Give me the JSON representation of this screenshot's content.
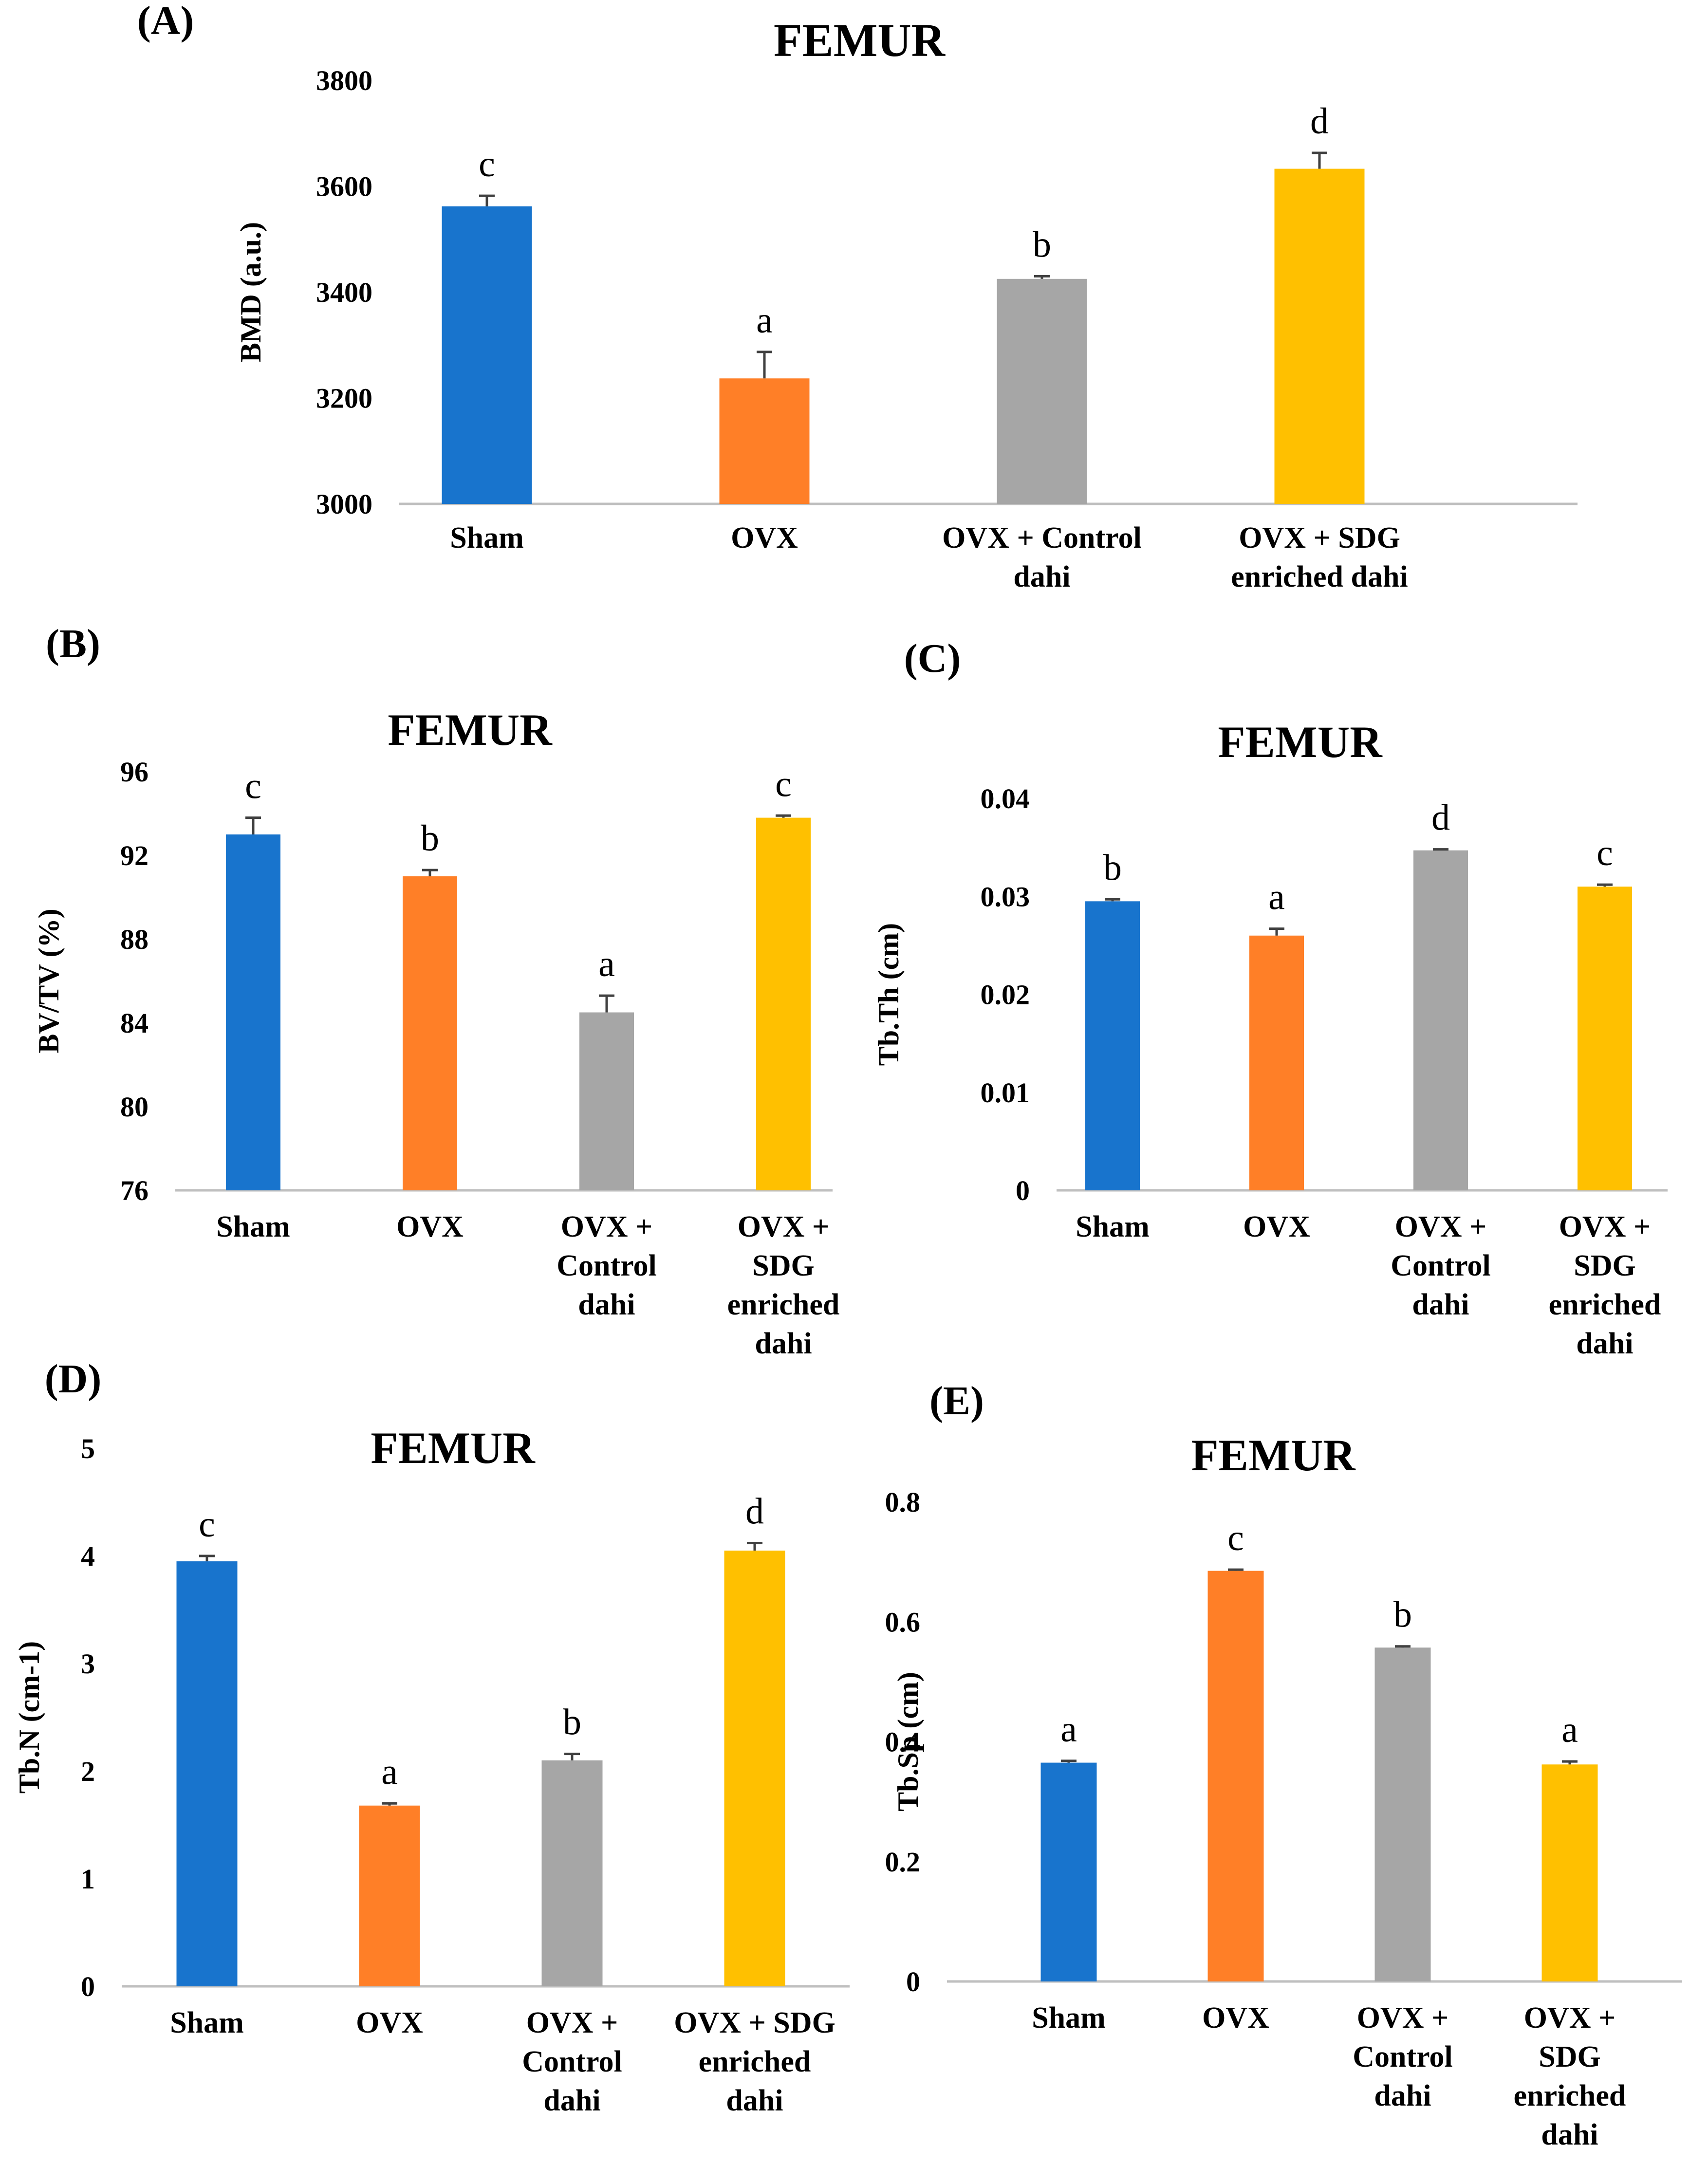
{
  "colors": {
    "sham": "#1874CD",
    "ovx": "#FF7F27",
    "ovx_control": "#A6A6A6",
    "ovx_sdg": "#FFC000",
    "axis": "#BFBFBF",
    "error_bar": "#404040",
    "text": "#000000"
  },
  "chart_data": [
    {
      "panel": "(A)",
      "type": "bar",
      "title": "FEMUR",
      "ylabel": "BMD (a.u.)",
      "xlabel": "",
      "ylim": [
        3000,
        3800
      ],
      "yticks": [
        "3000",
        "3200",
        "3400",
        "3600",
        "3800"
      ],
      "grid": false,
      "categories": [
        [
          "Sham"
        ],
        [
          "OVX"
        ],
        [
          "OVX + Control",
          "dahi"
        ],
        [
          "OVX + SDG",
          "enriched dahi"
        ]
      ],
      "values": [
        3562,
        3237,
        3425,
        3633
      ],
      "errors": [
        20,
        50,
        5,
        30
      ],
      "letters": [
        "c",
        "a",
        "b",
        "d"
      ]
    },
    {
      "panel": "(B)",
      "type": "bar",
      "title": "FEMUR",
      "ylabel": "BV/TV (%)",
      "xlabel": "",
      "ylim": [
        76,
        96
      ],
      "yticks": [
        "76",
        "80",
        "84",
        "88",
        "92",
        "96"
      ],
      "grid": false,
      "categories": [
        [
          "Sham"
        ],
        [
          "OVX"
        ],
        [
          "OVX +",
          "Control",
          "dahi"
        ],
        [
          "OVX +",
          "SDG",
          "enriched",
          "dahi"
        ]
      ],
      "values": [
        93.0,
        91.0,
        84.5,
        93.8
      ],
      "errors": [
        0.8,
        0.3,
        0.8,
        0.1
      ],
      "letters": [
        "c",
        "b",
        "a",
        "c"
      ]
    },
    {
      "panel": "(C)",
      "type": "bar",
      "title": "FEMUR",
      "ylabel": "Tb.Th (cm)",
      "xlabel": "",
      "ylim": [
        0,
        0.04
      ],
      "yticks": [
        "0",
        "0.01",
        "0.02",
        "0.03",
        "0.04"
      ],
      "grid": false,
      "categories": [
        [
          "Sham"
        ],
        [
          "OVX"
        ],
        [
          "OVX +",
          "Control",
          "dahi"
        ],
        [
          "OVX +",
          "SDG",
          "enriched",
          "dahi"
        ]
      ],
      "values": [
        0.0295,
        0.026,
        0.0347,
        0.031
      ],
      "errors": [
        0.0002,
        0.0007,
        0.0001,
        0.0002
      ],
      "letters": [
        "b",
        "a",
        "d",
        "c"
      ]
    },
    {
      "panel": "(D)",
      "type": "bar",
      "title": "FEMUR",
      "ylabel": "Tb.N (cm-1)",
      "xlabel": "",
      "ylim": [
        0,
        5
      ],
      "yticks": [
        "0",
        "1",
        "2",
        "3",
        "4",
        "5"
      ],
      "grid": false,
      "categories": [
        [
          "Sham"
        ],
        [
          "OVX"
        ],
        [
          "OVX +",
          "Control",
          "dahi"
        ],
        [
          "OVX + SDG",
          "enriched",
          "dahi"
        ]
      ],
      "values": [
        3.95,
        1.68,
        2.1,
        4.05
      ],
      "errors": [
        0.05,
        0.02,
        0.06,
        0.07
      ],
      "letters": [
        "c",
        "a",
        "b",
        "d"
      ]
    },
    {
      "panel": "(E)",
      "type": "bar",
      "title": "FEMUR",
      "ylabel": "Tb.Sp (cm)",
      "xlabel": "",
      "ylim": [
        0,
        0.8
      ],
      "yticks": [
        "0",
        "0.2",
        "0.4",
        "0.6",
        "0.8"
      ],
      "grid": false,
      "categories": [
        [
          "Sham"
        ],
        [
          "OVX"
        ],
        [
          "OVX +",
          "Control",
          "dahi"
        ],
        [
          "OVX +",
          "SDG",
          "enriched",
          "dahi"
        ]
      ],
      "values": [
        0.365,
        0.685,
        0.557,
        0.362
      ],
      "errors": [
        0.003,
        0.002,
        0.002,
        0.005
      ],
      "letters": [
        "a",
        "c",
        "b",
        "a"
      ]
    }
  ]
}
